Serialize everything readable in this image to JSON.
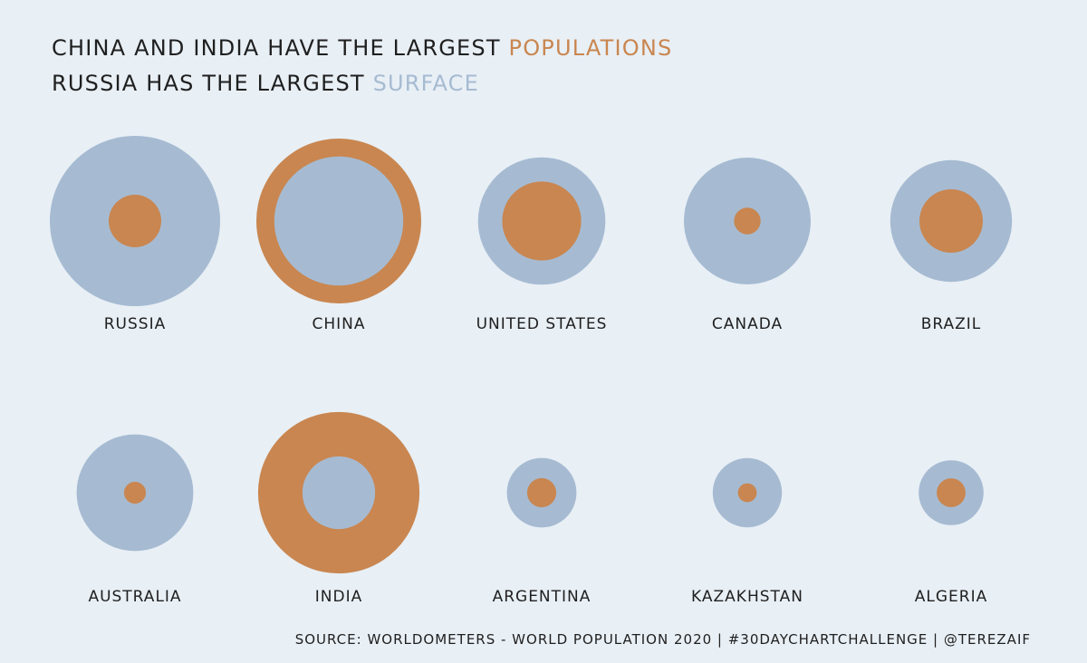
{
  "title": {
    "line1_prefix": "CHINA AND INDIA HAVE THE LARGEST ",
    "line1_highlight": "POPULATIONS",
    "line2_prefix": "RUSSIA HAS THE LARGEST ",
    "line2_highlight": "SURFACE"
  },
  "source": "SOURCE: WORLDOMETERS - WORLD POPULATION 2020 | #30DAYCHARTCHALLENGE | @TEREZAIF",
  "colors": {
    "background": "#e8eff5",
    "population": "#c98650",
    "surface": "#a6bbd2",
    "text": "#1f1f1f"
  },
  "chart_data": {
    "type": "proportional-circles",
    "series": [
      {
        "name": "POPULATIONS",
        "color": "#c98650"
      },
      {
        "name": "SURFACE",
        "color": "#a6bbd2"
      }
    ],
    "countries": [
      {
        "name": "RUSSIA",
        "population_millions": 145.9,
        "land_area_km2": 16376870
      },
      {
        "name": "CHINA",
        "population_millions": 1439.3,
        "land_area_km2": 9388211
      },
      {
        "name": "UNITED STATES",
        "population_millions": 331.0,
        "land_area_km2": 9147420
      },
      {
        "name": "CANADA",
        "population_millions": 37.7,
        "land_area_km2": 9093510
      },
      {
        "name": "BRAZIL",
        "population_millions": 212.6,
        "land_area_km2": 8358140
      },
      {
        "name": "AUSTRALIA",
        "population_millions": 25.5,
        "land_area_km2": 7682300
      },
      {
        "name": "INDIA",
        "population_millions": 1380.0,
        "land_area_km2": 2973190
      },
      {
        "name": "ARGENTINA",
        "population_millions": 45.2,
        "land_area_km2": 2736690
      },
      {
        "name": "KAZAKHSTAN",
        "population_millions": 18.8,
        "land_area_km2": 2699700
      },
      {
        "name": "ALGERIA",
        "population_millions": 43.9,
        "land_area_km2": 2381740
      }
    ]
  }
}
